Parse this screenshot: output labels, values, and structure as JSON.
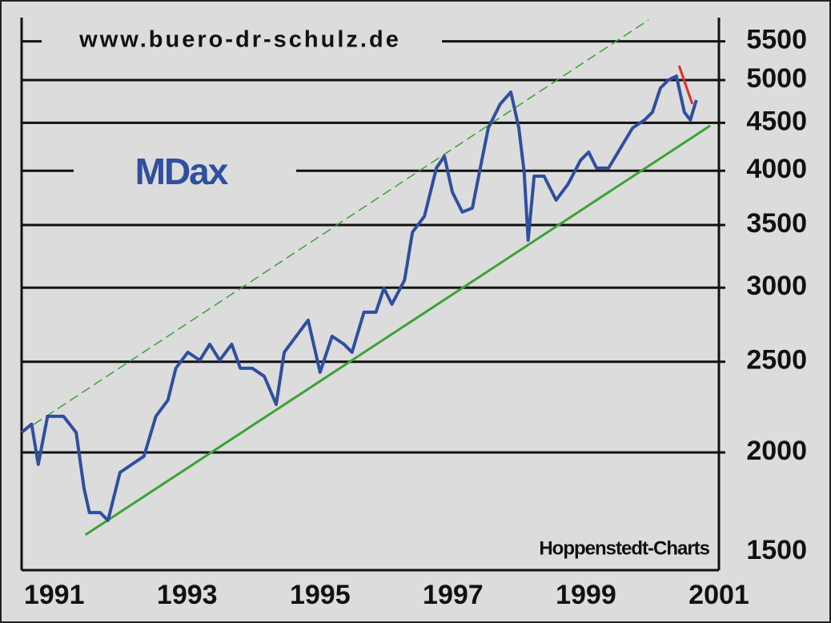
{
  "chart_data": {
    "type": "line",
    "title": "www.buero-dr-schulz.de",
    "label": "MDax",
    "source": "Hoppenstedt-Charts",
    "log_scale": true,
    "grid": true,
    "xlim": [
      1990.51,
      2001
    ],
    "xticks": [
      1991,
      1993,
      1995,
      1997,
      1999,
      2001
    ],
    "ylim": [
      1500,
      5830
    ],
    "yticks": [
      1500,
      2000,
      2500,
      3000,
      3500,
      4000,
      4500,
      5000,
      5500
    ],
    "series": [
      {
        "color": "#2f4f9f",
        "x": [
          1990.51,
          1990.66,
          1990.76,
          1990.9,
          1991.14,
          1991.33,
          1991.45,
          1991.53,
          1991.69,
          1991.81,
          1991.99,
          1992.17,
          1992.35,
          1992.53,
          1992.71,
          1992.83,
          1993.01,
          1993.19,
          1993.34,
          1993.49,
          1993.67,
          1993.8,
          1993.98,
          1994.16,
          1994.34,
          1994.46,
          1994.64,
          1994.82,
          1995.0,
          1995.18,
          1995.36,
          1995.48,
          1995.66,
          1995.84,
          1995.96,
          1996.08,
          1996.27,
          1996.39,
          1996.57,
          1996.75,
          1996.87,
          1996.99,
          1997.14,
          1997.29,
          1997.41,
          1997.53,
          1997.71,
          1997.87,
          1997.99,
          1998.07,
          1998.13,
          1998.22,
          1998.37,
          1998.55,
          1998.73,
          1998.92,
          1999.04,
          1999.16,
          1999.34,
          1999.52,
          1999.7,
          1999.88,
          2000.0,
          2000.12,
          2000.24,
          2000.36,
          2000.48,
          2000.57,
          2000.66
        ],
        "values": [
          2101,
          2144,
          1942,
          2186,
          2186,
          2101,
          1830,
          1725,
          1725,
          1692,
          1904,
          1942,
          1981,
          2186,
          2274,
          2460,
          2559,
          2509,
          2610,
          2509,
          2610,
          2460,
          2460,
          2412,
          2251,
          2559,
          2662,
          2769,
          2436,
          2662,
          2610,
          2559,
          2824,
          2824,
          2996,
          2880,
          3056,
          3439,
          3577,
          4026,
          4146,
          3795,
          3613,
          3648,
          4026,
          4443,
          4713,
          4854,
          4443,
          3987,
          3372,
          3947,
          3947,
          3721,
          3870,
          4106,
          4188,
          4026,
          4026,
          4229,
          4443,
          4531,
          4621,
          4902,
          5000,
          5049,
          4621,
          4531,
          4760
        ]
      }
    ],
    "trend_lines": [
      {
        "color": "#3aa335",
        "dashed": false,
        "x": [
          1991.47,
          2000.87
        ],
        "values": [
          1633,
          4469
        ]
      },
      {
        "color": "#3aa335",
        "dashed": true,
        "x": [
          1990.51,
          1999.94
        ],
        "values": [
          2101,
          5796
        ]
      },
      {
        "color": "#e0302a",
        "dashed": false,
        "x": [
          2000.4,
          2000.6
        ],
        "values": [
          5180,
          4713
        ]
      }
    ]
  }
}
